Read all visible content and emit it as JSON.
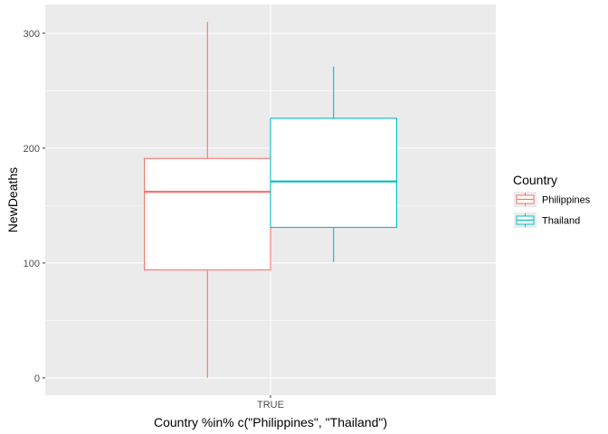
{
  "chart_data": {
    "type": "boxplot",
    "title": "",
    "xlabel": "Country %in% c(\"Philippines\", \"Thailand\")",
    "ylabel": "NewDeaths",
    "categories": [
      "TRUE"
    ],
    "ylim": [
      -15,
      325
    ],
    "yticks": [
      0,
      100,
      200,
      300
    ],
    "grid": true,
    "legend": {
      "title": "Country",
      "position": "right"
    },
    "series": [
      {
        "name": "Philippines",
        "color": "#F8766D",
        "category": "TRUE",
        "min": 0,
        "q1": 94,
        "median": 162,
        "q3": 191,
        "max": 310
      },
      {
        "name": "Thailand",
        "color": "#00BFC4",
        "category": "TRUE",
        "min": 101,
        "q1": 131,
        "median": 171,
        "q3": 226,
        "max": 271
      }
    ]
  }
}
